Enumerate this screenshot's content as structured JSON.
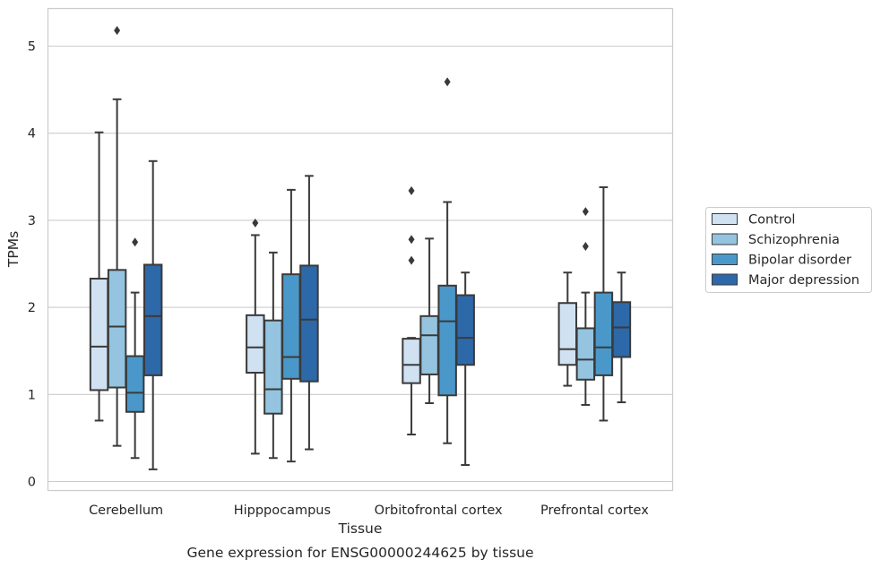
{
  "chart_data": {
    "type": "box",
    "caption": "Gene expression for ENSG00000244625 by tissue",
    "xlabel": "Tissue",
    "ylabel": "TPMs",
    "ylim": [
      -0.1,
      5.45
    ],
    "yticks": [
      0,
      1,
      2,
      3,
      4,
      5
    ],
    "grid": "horizontal",
    "legend_position": "right",
    "categories": [
      "Cerebellum",
      "Hipppocampus",
      "Orbitofrontal cortex",
      "Prefrontal cortex"
    ],
    "series": [
      {
        "name": "Control",
        "color": "#d0e1f2",
        "boxes": [
          {
            "whisker_low": 0.7,
            "q1": 1.05,
            "median": 1.55,
            "q3": 2.33,
            "whisker_high": 4.01,
            "outliers": []
          },
          {
            "whisker_low": 0.32,
            "q1": 1.25,
            "median": 1.54,
            "q3": 1.91,
            "whisker_high": 2.83,
            "outliers": [
              2.97
            ]
          },
          {
            "whisker_low": 0.54,
            "q1": 1.13,
            "median": 1.34,
            "q3": 1.64,
            "whisker_high": 1.65,
            "outliers": [
              2.54,
              2.78,
              3.34
            ]
          },
          {
            "whisker_low": 1.1,
            "q1": 1.34,
            "median": 1.52,
            "q3": 2.05,
            "whisker_high": 2.4,
            "outliers": []
          }
        ]
      },
      {
        "name": "Schizophrenia",
        "color": "#94c4df",
        "boxes": [
          {
            "whisker_low": 0.41,
            "q1": 1.08,
            "median": 1.78,
            "q3": 2.43,
            "whisker_high": 4.39,
            "outliers": [
              5.18
            ]
          },
          {
            "whisker_low": 0.27,
            "q1": 0.78,
            "median": 1.06,
            "q3": 1.85,
            "whisker_high": 2.63,
            "outliers": []
          },
          {
            "whisker_low": 0.9,
            "q1": 1.23,
            "median": 1.68,
            "q3": 1.9,
            "whisker_high": 2.79,
            "outliers": []
          },
          {
            "whisker_low": 0.88,
            "q1": 1.17,
            "median": 1.4,
            "q3": 1.76,
            "whisker_high": 2.17,
            "outliers": [
              2.7,
              3.1
            ]
          }
        ]
      },
      {
        "name": "Bipolar disorder",
        "color": "#4a98c9",
        "boxes": [
          {
            "whisker_low": 0.27,
            "q1": 0.8,
            "median": 1.02,
            "q3": 1.44,
            "whisker_high": 2.17,
            "outliers": [
              2.75
            ]
          },
          {
            "whisker_low": 0.23,
            "q1": 1.18,
            "median": 1.43,
            "q3": 2.38,
            "whisker_high": 3.35,
            "outliers": []
          },
          {
            "whisker_low": 0.44,
            "q1": 0.99,
            "median": 1.84,
            "q3": 2.25,
            "whisker_high": 3.21,
            "outliers": [
              4.59
            ]
          },
          {
            "whisker_low": 0.7,
            "q1": 1.22,
            "median": 1.54,
            "q3": 2.17,
            "whisker_high": 3.38,
            "outliers": []
          }
        ]
      },
      {
        "name": "Major depression",
        "color": "#2d68a9",
        "boxes": [
          {
            "whisker_low": 0.14,
            "q1": 1.22,
            "median": 1.9,
            "q3": 2.49,
            "whisker_high": 3.68,
            "outliers": []
          },
          {
            "whisker_low": 0.37,
            "q1": 1.15,
            "median": 1.86,
            "q3": 2.48,
            "whisker_high": 3.51,
            "outliers": []
          },
          {
            "whisker_low": 0.19,
            "q1": 1.34,
            "median": 1.65,
            "q3": 2.14,
            "whisker_high": 2.4,
            "outliers": []
          },
          {
            "whisker_low": 0.91,
            "q1": 1.43,
            "median": 1.77,
            "q3": 2.06,
            "whisker_high": 2.4,
            "outliers": []
          }
        ]
      }
    ]
  }
}
